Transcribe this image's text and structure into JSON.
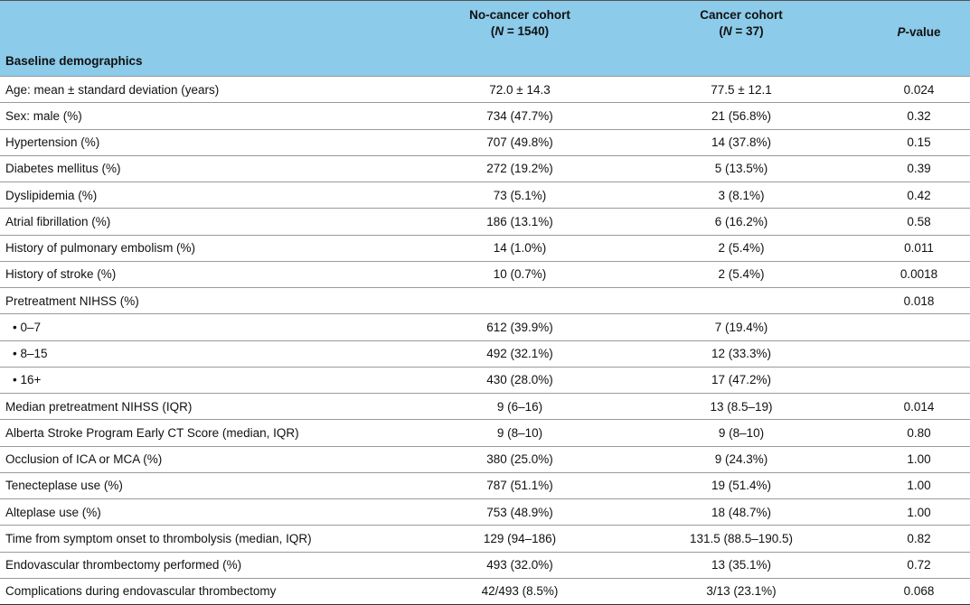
{
  "table": {
    "header": [
      null,
      {
        "line1": "No-cancer cohort",
        "pre": "(",
        "italic": "N",
        "post": " = 1540)"
      },
      {
        "line1": "Cancer cohort",
        "pre": "(",
        "italic": "N",
        "post": " = 37)"
      },
      {
        "italic": "P",
        "post": "-value"
      }
    ],
    "section": "Baseline demographics",
    "rows": [
      [
        "Age: mean ± standard deviation (years)",
        "72.0 ± 14.3",
        "77.5 ± 12.1",
        "0.024"
      ],
      [
        "Sex: male (%)",
        "734 (47.7%)",
        "21 (56.8%)",
        "0.32"
      ],
      [
        "Hypertension (%)",
        "707 (49.8%)",
        "14 (37.8%)",
        "0.15"
      ],
      [
        "Diabetes mellitus (%)",
        "272 (19.2%)",
        "5 (13.5%)",
        "0.39"
      ],
      [
        "Dyslipidemia (%)",
        "73 (5.1%)",
        "3 (8.1%)",
        "0.42"
      ],
      [
        "Atrial fibrillation (%)",
        "186 (13.1%)",
        "6 (16.2%)",
        "0.58"
      ],
      [
        "History of pulmonary embolism (%)",
        "14 (1.0%)",
        "2 (5.4%)",
        "0.011"
      ],
      [
        "History of stroke (%)",
        "10 (0.7%)",
        "2 (5.4%)",
        "0.0018"
      ],
      [
        "Pretreatment NIHSS (%)",
        null,
        null,
        "0.018"
      ],
      [
        "• 0–7",
        "612 (39.9%)",
        "7 (19.4%)",
        null
      ],
      [
        "• 8–15",
        "492 (32.1%)",
        "12 (33.3%)",
        null
      ],
      [
        "• 16+",
        "430 (28.0%)",
        "17 (47.2%)",
        null
      ],
      [
        "Median pretreatment NIHSS (IQR)",
        "9 (6–16)",
        "13 (8.5–19)",
        "0.014"
      ],
      [
        "Alberta Stroke Program Early CT Score (median, IQR)",
        "9 (8–10)",
        "9 (8–10)",
        "0.80"
      ],
      [
        "Occlusion of ICA or MCA (%)",
        "380 (25.0%)",
        "9 (24.3%)",
        "1.00"
      ],
      [
        "Tenecteplase use (%)",
        "787 (51.1%)",
        "19 (51.4%)",
        "1.00"
      ],
      [
        "Alteplase use (%)",
        "753 (48.9%)",
        "18 (48.7%)",
        "1.00"
      ],
      [
        "Time from symptom onset to thrombolysis (median, IQR)",
        "129 (94–186)",
        "131.5 (88.5–190.5)",
        "0.82"
      ],
      [
        "Endovascular thrombectomy performed (%)",
        "493 (32.0%)",
        "13 (35.1%)",
        "0.72"
      ],
      [
        "Complications during endovascular thrombectomy",
        "42/493 (8.5%)",
        "3/13 (23.1%)",
        "0.068"
      ]
    ]
  }
}
